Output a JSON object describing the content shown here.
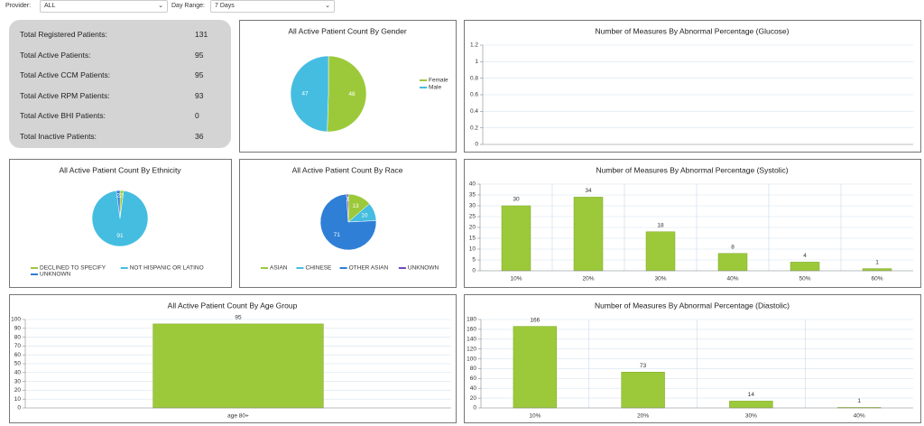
{
  "filters": {
    "provider_label": "Provider:",
    "provider": "ALL",
    "day_range_label": "Day Range:",
    "day_range": "7 Days"
  },
  "summary": {
    "rows": [
      {
        "label": "Total Registered Patients:",
        "value": 131
      },
      {
        "label": "Total Active Patients:",
        "value": 95
      },
      {
        "label": "Total Active CCM Patients:",
        "value": 95
      },
      {
        "label": "Total Active RPM Patients:",
        "value": 93
      },
      {
        "label": "Total Active BHI Patients:",
        "value": 0
      },
      {
        "label": "Total Inactive Patients:",
        "value": 36
      }
    ]
  },
  "chart_data": [
    {
      "type": "pie",
      "title": "All Active Patient Count By Gender",
      "categories": [
        "Female",
        "Male"
      ],
      "values": [
        48,
        47
      ],
      "colors": [
        "#9cc93a",
        "#45bde0"
      ],
      "legend": "right"
    },
    {
      "type": "bar",
      "title": "Number of Measures By Abnormal Percentage (Glucose)",
      "categories": [],
      "values": [],
      "color": "#9cc93a",
      "ylim": [
        0,
        1.2
      ],
      "yticks": [
        0,
        0.2,
        0.4,
        0.6,
        0.8,
        1,
        1.2
      ],
      "grid": true
    },
    {
      "type": "pie",
      "title": "All Active Patient Count By Ethnicity",
      "categories": [
        "DECLINED TO SPECIFY",
        "NOT HISPANIC OR LATINO",
        "UNKNOWN"
      ],
      "values": [
        2,
        91,
        2
      ],
      "colors": [
        "#9cc93a",
        "#45bde0",
        "#2f7fd6"
      ],
      "legend": "bottom"
    },
    {
      "type": "pie",
      "title": "All Active Patient Count By Race",
      "categories": [
        "ASIAN",
        "CHINESE",
        "OTHER ASIAN",
        "UNKNOWN"
      ],
      "values": [
        13,
        10,
        71,
        1
      ],
      "colors": [
        "#9cc93a",
        "#45bde0",
        "#2f7fd6",
        "#7048c0"
      ],
      "legend": "bottom"
    },
    {
      "type": "bar",
      "title": "Number of Measures By Abnormal Percentage (Systolic)",
      "categories": [
        "10%",
        "20%",
        "30%",
        "40%",
        "50%",
        "60%"
      ],
      "values": [
        30,
        34,
        18,
        8,
        4,
        1
      ],
      "color": "#9cc93a",
      "ylim": [
        0,
        40
      ],
      "yticks": [
        0,
        5,
        10,
        15,
        20,
        25,
        30,
        35,
        40
      ],
      "grid": true
    },
    {
      "type": "bar",
      "title": "All Active Patient Count By Age Group",
      "categories": [
        "age 80+"
      ],
      "values": [
        95
      ],
      "color": "#9cc93a",
      "ylim": [
        0,
        100
      ],
      "yticks": [
        0,
        10,
        20,
        30,
        40,
        50,
        60,
        70,
        80,
        90,
        100
      ],
      "grid": true
    },
    {
      "type": "bar",
      "title": "Number of Measures By Abnormal Percentage (Diastolic)",
      "categories": [
        "10%",
        "20%",
        "30%",
        "40%"
      ],
      "values": [
        166,
        73,
        14,
        1
      ],
      "color": "#9cc93a",
      "ylim": [
        0,
        180
      ],
      "yticks": [
        0,
        20,
        40,
        60,
        80,
        100,
        120,
        140,
        160,
        180
      ],
      "grid": true
    }
  ]
}
